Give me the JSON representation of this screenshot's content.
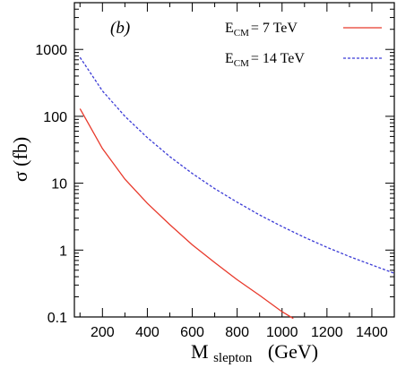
{
  "chart_data": {
    "type": "line",
    "panel_label": "(b)",
    "xlabel": {
      "main": "M",
      "sub": "slepton",
      "units": "(GeV)"
    },
    "ylabel": "σ  (fb)",
    "xlim": [
      75,
      1500
    ],
    "ylim": [
      0.1,
      5000
    ],
    "yscale": "log",
    "x_ticks": [
      200,
      400,
      600,
      800,
      1000,
      1200,
      1400
    ],
    "y_ticks": [
      {
        "value": 0.1,
        "label": "0.1"
      },
      {
        "value": 1,
        "label": "1"
      },
      {
        "value": 10,
        "label": "10"
      },
      {
        "value": 100,
        "label": "100"
      },
      {
        "value": 1000,
        "label": "1000"
      }
    ],
    "grid": false,
    "legend_position": "top-right",
    "series": [
      {
        "name": "7 TeV",
        "legend_prefix": "E",
        "legend_sub": "CM",
        "legend_eq": "=",
        "color": "#e8392b",
        "style": "solid",
        "x": [
          100,
          200,
          300,
          400,
          500,
          600,
          700,
          800,
          900,
          1000,
          1050
        ],
        "y": [
          130,
          33,
          11.5,
          5.0,
          2.4,
          1.2,
          0.65,
          0.36,
          0.21,
          0.12,
          0.095
        ]
      },
      {
        "name": "14 TeV",
        "legend_prefix": "E",
        "legend_sub": "CM",
        "legend_eq": "=",
        "color": "#3b3bd6",
        "style": "dashed",
        "x": [
          100,
          200,
          300,
          400,
          500,
          600,
          700,
          800,
          900,
          1000,
          1100,
          1200,
          1300,
          1400,
          1500
        ],
        "y": [
          760,
          240,
          100,
          48,
          25,
          14,
          8.3,
          5.2,
          3.35,
          2.25,
          1.55,
          1.1,
          0.8,
          0.6,
          0.45
        ]
      }
    ]
  }
}
